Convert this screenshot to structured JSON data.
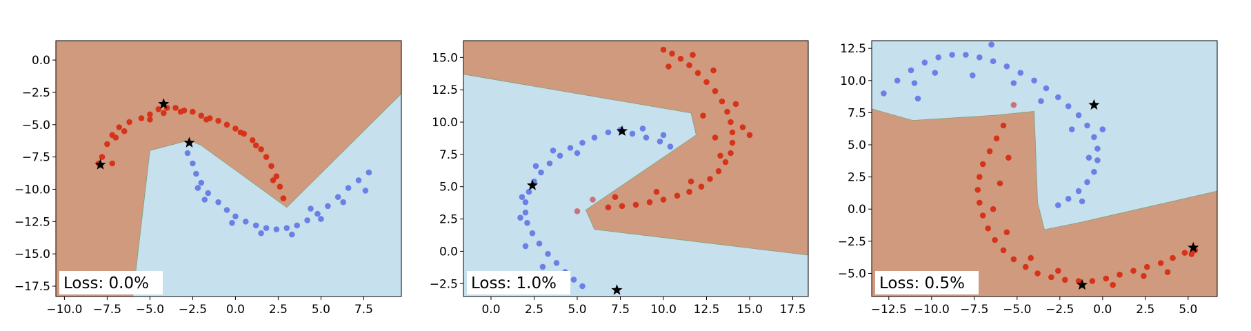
{
  "colors": {
    "region_red": "#D09A7E",
    "region_blue": "#C6E0EE",
    "class_red": "#D5331A",
    "class_blue": "#6B80E6",
    "misclassified": "#C8737A",
    "support_star": "#000000",
    "axis": "#000000"
  },
  "chart_data": [
    {
      "type": "scatter",
      "loss_label": "Loss: 0.0%",
      "xlim": [
        -10.5,
        9.7
      ],
      "ylim": [
        -18.3,
        1.5
      ],
      "xticks": [
        -10.0,
        -7.5,
        -5.0,
        -2.5,
        0.0,
        2.5,
        5.0,
        7.5
      ],
      "xtick_labels": [
        "−10.0",
        "−7.5",
        "−5.0",
        "−2.5",
        "0.0",
        "2.5",
        "5.0",
        "7.5"
      ],
      "yticks": [
        0.0,
        -2.5,
        -5.0,
        -7.5,
        -10.0,
        -12.5,
        -15.0,
        -17.5
      ],
      "ytick_labels": [
        "0.0",
        "−2.5",
        "−5.0",
        "−7.5",
        "−10.0",
        "−12.5",
        "−15.0",
        "−17.5"
      ],
      "blue_region": [
        [
          -6.0,
          -18.3
        ],
        [
          -5.0,
          -7.0
        ],
        [
          -2.7,
          -6.2
        ],
        [
          -2.0,
          -6.6
        ],
        [
          3.0,
          -11.4
        ],
        [
          9.7,
          -2.6
        ],
        [
          9.7,
          -18.3
        ]
      ],
      "red_class": [
        [
          -8.0,
          -8.0
        ],
        [
          -7.8,
          -7.5
        ],
        [
          -7.5,
          -6.5
        ],
        [
          -7.2,
          -5.8
        ],
        [
          -6.8,
          -5.2
        ],
        [
          -6.2,
          -4.8
        ],
        [
          -5.5,
          -4.5
        ],
        [
          -5.0,
          -4.2
        ],
        [
          -4.5,
          -3.8
        ],
        [
          -4.0,
          -3.7
        ],
        [
          -3.5,
          -3.7
        ],
        [
          -3.0,
          -3.9
        ],
        [
          -2.5,
          -4.0
        ],
        [
          -2.0,
          -4.3
        ],
        [
          -1.5,
          -4.5
        ],
        [
          -1.0,
          -4.7
        ],
        [
          -0.5,
          -5.0
        ],
        [
          0.0,
          -5.3
        ],
        [
          0.5,
          -5.7
        ],
        [
          1.0,
          -6.2
        ],
        [
          1.5,
          -6.9
        ],
        [
          1.8,
          -7.5
        ],
        [
          2.1,
          -8.2
        ],
        [
          2.4,
          -9.0
        ],
        [
          2.6,
          -9.8
        ],
        [
          2.8,
          -10.7
        ],
        [
          -7.0,
          -6.0
        ],
        [
          -6.5,
          -5.5
        ],
        [
          -4.2,
          -4.1
        ],
        [
          -3.2,
          -4.0
        ],
        [
          -1.7,
          -4.6
        ],
        [
          0.3,
          -5.6
        ],
        [
          1.2,
          -6.6
        ],
        [
          2.2,
          -9.3
        ],
        [
          -5.0,
          -4.6
        ],
        [
          -7.2,
          -8.0
        ]
      ],
      "blue_class": [
        [
          -2.8,
          -7.2
        ],
        [
          -2.5,
          -8.0
        ],
        [
          -2.3,
          -8.8
        ],
        [
          -2.0,
          -9.5
        ],
        [
          -1.6,
          -10.3
        ],
        [
          -1.0,
          -11.0
        ],
        [
          -0.5,
          -11.6
        ],
        [
          0.0,
          -12.1
        ],
        [
          0.6,
          -12.5
        ],
        [
          1.2,
          -12.8
        ],
        [
          1.8,
          -13.0
        ],
        [
          2.4,
          -13.1
        ],
        [
          3.0,
          -13.0
        ],
        [
          3.6,
          -12.8
        ],
        [
          4.2,
          -12.4
        ],
        [
          4.8,
          -11.9
        ],
        [
          5.4,
          -11.3
        ],
        [
          6.0,
          -10.6
        ],
        [
          6.6,
          -9.9
        ],
        [
          7.2,
          -9.3
        ],
        [
          7.8,
          -8.7
        ],
        [
          -1.8,
          -10.8
        ],
        [
          -0.2,
          -12.6
        ],
        [
          1.5,
          -13.4
        ],
        [
          3.3,
          -13.5
        ],
        [
          5.0,
          -12.3
        ],
        [
          6.3,
          -11.0
        ],
        [
          7.6,
          -10.1
        ],
        [
          -2.2,
          -9.9
        ],
        [
          4.4,
          -11.5
        ]
      ],
      "misclassified": [],
      "stars": [
        [
          -4.2,
          -3.4
        ],
        [
          -2.7,
          -6.4
        ],
        [
          -7.9,
          -8.1
        ]
      ]
    },
    {
      "type": "scatter",
      "loss_label": "Loss: 1.0%",
      "xlim": [
        -1.6,
        18.4
      ],
      "ylim": [
        -3.5,
        16.3
      ],
      "xticks": [
        0.0,
        2.5,
        5.0,
        7.5,
        10.0,
        12.5,
        15.0,
        17.5
      ],
      "xtick_labels": [
        "0.0",
        "2.5",
        "5.0",
        "7.5",
        "10.0",
        "12.5",
        "15.0",
        "17.5"
      ],
      "yticks": [
        15.0,
        12.5,
        10.0,
        7.5,
        5.0,
        2.5,
        0.0,
        -2.5
      ],
      "ytick_labels": [
        "15.0",
        "12.5",
        "10.0",
        "7.5",
        "5.0",
        "2.5",
        "0.0",
        "−2.5"
      ],
      "blue_region": [
        [
          -1.6,
          13.7
        ],
        [
          11.6,
          10.7
        ],
        [
          11.9,
          9.0
        ],
        [
          5.5,
          3.2
        ],
        [
          6.0,
          1.7
        ],
        [
          18.4,
          -0.3
        ],
        [
          18.4,
          -3.5
        ],
        [
          -1.6,
          -3.5
        ]
      ],
      "red_class": [
        [
          10.0,
          15.6
        ],
        [
          10.5,
          15.3
        ],
        [
          11.0,
          14.9
        ],
        [
          11.5,
          14.4
        ],
        [
          12.0,
          13.8
        ],
        [
          12.5,
          13.1
        ],
        [
          13.0,
          12.4
        ],
        [
          13.4,
          11.6
        ],
        [
          13.7,
          10.8
        ],
        [
          13.9,
          10.0
        ],
        [
          14.0,
          9.2
        ],
        [
          14.0,
          8.4
        ],
        [
          13.9,
          7.6
        ],
        [
          13.6,
          6.9
        ],
        [
          13.2,
          6.2
        ],
        [
          12.7,
          5.6
        ],
        [
          12.2,
          5.0
        ],
        [
          11.5,
          4.6
        ],
        [
          10.8,
          4.3
        ],
        [
          10.0,
          4.0
        ],
        [
          9.2,
          3.8
        ],
        [
          8.4,
          3.6
        ],
        [
          7.6,
          3.5
        ],
        [
          6.8,
          3.4
        ],
        [
          14.6,
          9.6
        ],
        [
          14.2,
          11.4
        ],
        [
          12.9,
          14.0
        ],
        [
          11.7,
          15.2
        ],
        [
          10.3,
          14.3
        ],
        [
          13.3,
          7.4
        ],
        [
          11.6,
          5.4
        ],
        [
          9.6,
          4.6
        ],
        [
          7.2,
          4.2
        ],
        [
          15.0,
          9.0
        ],
        [
          12.3,
          10.5
        ],
        [
          13.0,
          8.8
        ]
      ],
      "blue_class": [
        [
          7.5,
          9.4
        ],
        [
          8.2,
          9.1
        ],
        [
          9.0,
          8.8
        ],
        [
          9.8,
          8.5
        ],
        [
          10.4,
          8.1
        ],
        [
          6.8,
          9.2
        ],
        [
          6.0,
          8.8
        ],
        [
          5.3,
          8.4
        ],
        [
          4.6,
          8.0
        ],
        [
          4.0,
          7.4
        ],
        [
          3.4,
          6.8
        ],
        [
          2.9,
          6.1
        ],
        [
          2.5,
          5.4
        ],
        [
          2.2,
          4.6
        ],
        [
          2.0,
          3.8
        ],
        [
          2.0,
          3.0
        ],
        [
          2.1,
          2.2
        ],
        [
          2.4,
          1.4
        ],
        [
          2.8,
          0.6
        ],
        [
          3.3,
          -0.2
        ],
        [
          3.8,
          -0.9
        ],
        [
          4.3,
          -1.6
        ],
        [
          4.8,
          -2.2
        ],
        [
          5.3,
          -2.7
        ],
        [
          3.6,
          7.8
        ],
        [
          2.6,
          6.6
        ],
        [
          1.8,
          4.2
        ],
        [
          1.7,
          2.6
        ],
        [
          2.0,
          0.4
        ],
        [
          3.0,
          -1.2
        ],
        [
          4.0,
          -2.6
        ],
        [
          8.8,
          9.5
        ],
        [
          10.0,
          9.0
        ],
        [
          5.0,
          7.6
        ]
      ],
      "misclassified": [
        [
          5.0,
          3.1
        ],
        [
          5.9,
          4.0
        ]
      ],
      "stars": [
        [
          7.6,
          9.3
        ],
        [
          2.4,
          5.1
        ],
        [
          7.3,
          -3.0
        ]
      ]
    },
    {
      "type": "scatter",
      "loss_label": "Loss: 0.5%",
      "xlim": [
        -13.5,
        6.7
      ],
      "ylim": [
        -6.8,
        13.1
      ],
      "xticks": [
        -12.5,
        -10.0,
        -7.5,
        -5.0,
        -2.5,
        0.0,
        2.5,
        5.0
      ],
      "xtick_labels": [
        "−12.5",
        "−10.0",
        "−7.5",
        "−5.0",
        "−2.5",
        "0.0",
        "2.5",
        "5.0"
      ],
      "yticks": [
        12.5,
        10.0,
        7.5,
        5.0,
        2.5,
        0.0,
        -2.5,
        -5.0
      ],
      "ytick_labels": [
        "12.5",
        "10.0",
        "7.5",
        "5.0",
        "2.5",
        "0.0",
        "−2.5",
        "−5.0"
      ],
      "blue_region": [
        [
          -13.5,
          13.1
        ],
        [
          6.7,
          13.1
        ],
        [
          6.7,
          1.4
        ],
        [
          -1.2,
          -1.0
        ],
        [
          -3.4,
          -1.6
        ],
        [
          -3.8,
          0.5
        ],
        [
          -4.0,
          7.6
        ],
        [
          -6.3,
          7.3
        ],
        [
          -11.1,
          6.9
        ],
        [
          -13.5,
          7.8
        ]
      ],
      "red_class": [
        [
          -5.8,
          6.5
        ],
        [
          -6.2,
          5.5
        ],
        [
          -6.6,
          4.5
        ],
        [
          -7.0,
          3.5
        ],
        [
          -7.2,
          2.5
        ],
        [
          -7.3,
          1.5
        ],
        [
          -7.2,
          0.5
        ],
        [
          -7.0,
          -0.5
        ],
        [
          -6.7,
          -1.5
        ],
        [
          -6.3,
          -2.4
        ],
        [
          -5.8,
          -3.2
        ],
        [
          -5.2,
          -3.9
        ],
        [
          -4.5,
          -4.5
        ],
        [
          -3.8,
          -5.0
        ],
        [
          -3.0,
          -5.3
        ],
        [
          -2.2,
          -5.5
        ],
        [
          -1.4,
          -5.6
        ],
        [
          -0.6,
          -5.6
        ],
        [
          0.2,
          -5.4
        ],
        [
          1.0,
          -5.1
        ],
        [
          1.8,
          -4.8
        ],
        [
          2.6,
          -4.5
        ],
        [
          3.4,
          -4.2
        ],
        [
          4.1,
          -3.8
        ],
        [
          4.8,
          -3.4
        ],
        [
          5.4,
          -3.2
        ],
        [
          -5.5,
          4.0
        ],
        [
          -6.0,
          2.0
        ],
        [
          -6.4,
          0.0
        ],
        [
          -5.6,
          -1.8
        ],
        [
          -4.2,
          -3.8
        ],
        [
          -2.6,
          -4.8
        ],
        [
          0.6,
          -5.9
        ],
        [
          2.4,
          -5.2
        ],
        [
          3.8,
          -4.9
        ],
        [
          5.2,
          -3.5
        ]
      ],
      "blue_class": [
        [
          -12.8,
          9.0
        ],
        [
          -12.0,
          10.0
        ],
        [
          -11.2,
          10.8
        ],
        [
          -10.4,
          11.4
        ],
        [
          -9.6,
          11.8
        ],
        [
          -8.8,
          12.0
        ],
        [
          -8.0,
          12.0
        ],
        [
          -7.2,
          11.8
        ],
        [
          -6.4,
          11.5
        ],
        [
          -5.6,
          11.1
        ],
        [
          -4.8,
          10.6
        ],
        [
          -4.0,
          10.0
        ],
        [
          -3.3,
          9.4
        ],
        [
          -2.6,
          8.7
        ],
        [
          -2.0,
          8.0
        ],
        [
          -1.4,
          7.3
        ],
        [
          -0.9,
          6.5
        ],
        [
          -0.5,
          5.6
        ],
        [
          -0.3,
          4.7
        ],
        [
          -0.3,
          3.8
        ],
        [
          -0.5,
          2.9
        ],
        [
          -0.9,
          2.1
        ],
        [
          -1.4,
          1.4
        ],
        [
          -2.0,
          0.8
        ],
        [
          -2.6,
          0.3
        ],
        [
          -6.5,
          12.8
        ],
        [
          -9.8,
          10.6
        ],
        [
          -11.0,
          9.8
        ],
        [
          -7.6,
          10.4
        ],
        [
          -5.2,
          9.8
        ],
        [
          -3.6,
          8.4
        ],
        [
          -1.8,
          6.2
        ],
        [
          -0.8,
          4.0
        ],
        [
          -1.2,
          0.6
        ],
        [
          0.0,
          6.2
        ],
        [
          -10.8,
          8.6
        ]
      ],
      "misclassified": [
        [
          -5.2,
          8.1
        ]
      ],
      "stars": [
        [
          -0.5,
          8.1
        ],
        [
          -1.2,
          -5.9
        ],
        [
          5.3,
          -3.0
        ]
      ]
    }
  ]
}
